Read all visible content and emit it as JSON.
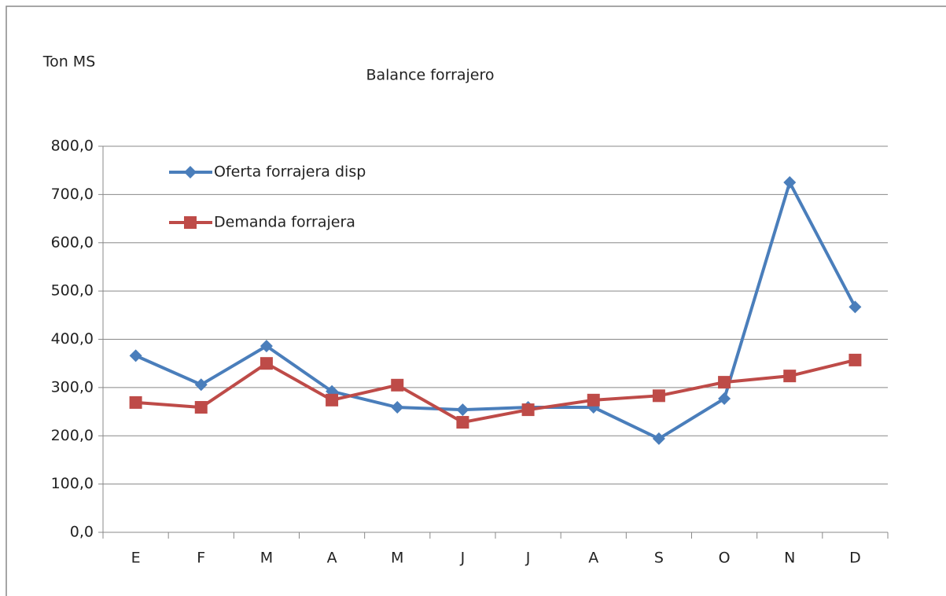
{
  "chart_data": {
    "type": "line",
    "title": "Balance forrajero",
    "y_label": "Ton MS",
    "categories": [
      "E",
      "F",
      "M",
      "A",
      "M",
      "J",
      "J",
      "A",
      "S",
      "O",
      "N",
      "D"
    ],
    "series": [
      {
        "name": "Oferta forrajera  disp",
        "color": "#4a7ebb",
        "marker": "diamond",
        "values": [
          366,
          306,
          386,
          292,
          259,
          254,
          259,
          259,
          194,
          277,
          725,
          467
        ]
      },
      {
        "name": "Demanda forrajera",
        "color": "#be4b48",
        "marker": "square",
        "values": [
          269,
          259,
          350,
          274,
          305,
          228,
          254,
          274,
          283,
          311,
          324,
          357
        ]
      }
    ],
    "ylim": [
      0,
      800
    ],
    "yticks": [
      {
        "value": 0,
        "label": "0,0"
      },
      {
        "value": 100,
        "label": "100,0"
      },
      {
        "value": 200,
        "label": "200,0"
      },
      {
        "value": 300,
        "label": "300,0"
      },
      {
        "value": 400,
        "label": "400,0"
      },
      {
        "value": 500,
        "label": "500,0"
      },
      {
        "value": 600,
        "label": "600,0"
      },
      {
        "value": 700,
        "label": "700,0"
      },
      {
        "value": 800,
        "label": "800,0"
      }
    ],
    "grid": true,
    "legend": "upper left"
  }
}
